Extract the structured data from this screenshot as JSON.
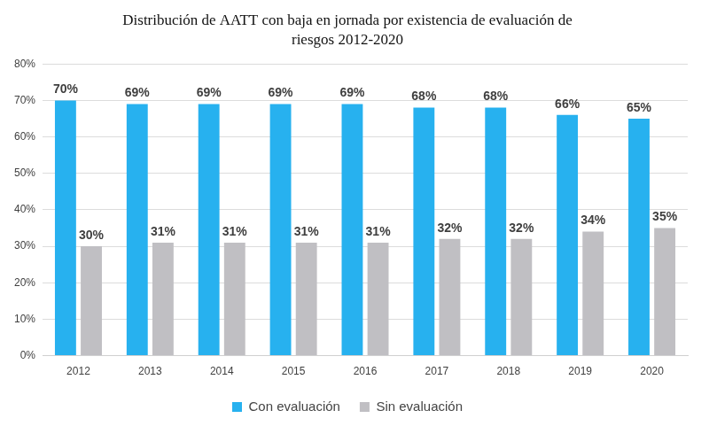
{
  "chart_data": {
    "type": "bar",
    "title": [
      "Distribución de AATT con baja en jornada por existencia de evaluación de",
      "riesgos 2012-2020"
    ],
    "categories": [
      "2012",
      "2013",
      "2014",
      "2015",
      "2016",
      "2017",
      "2018",
      "2019",
      "2020"
    ],
    "series": [
      {
        "name": "Con evaluación",
        "color": "#27b1ef",
        "values": [
          70,
          69,
          69,
          69,
          69,
          68,
          68,
          66,
          65
        ],
        "value_labels": [
          "70%",
          "69%",
          "69%",
          "69%",
          "69%",
          "68%",
          "68%",
          "66%",
          "65%"
        ]
      },
      {
        "name": "Sin evaluación",
        "color": "#c0bfc3",
        "values": [
          30,
          31,
          31,
          31,
          31,
          32,
          32,
          34,
          35
        ],
        "value_labels": [
          "30%",
          "31%",
          "31%",
          "31%",
          "31%",
          "32%",
          "32%",
          "34%",
          "35%"
        ]
      }
    ],
    "ylim": [
      0,
      80
    ],
    "yticks": [
      {
        "value": 0,
        "label": "0%"
      },
      {
        "value": 10,
        "label": "10%"
      },
      {
        "value": 20,
        "label": "20%"
      },
      {
        "value": 30,
        "label": "30%"
      },
      {
        "value": 40,
        "label": "40%"
      },
      {
        "value": 50,
        "label": "50%"
      },
      {
        "value": 60,
        "label": "60%"
      },
      {
        "value": 70,
        "label": "70%"
      },
      {
        "value": 80,
        "label": "80%"
      }
    ],
    "grid": true,
    "legend": "bottom",
    "data_labels": true
  }
}
